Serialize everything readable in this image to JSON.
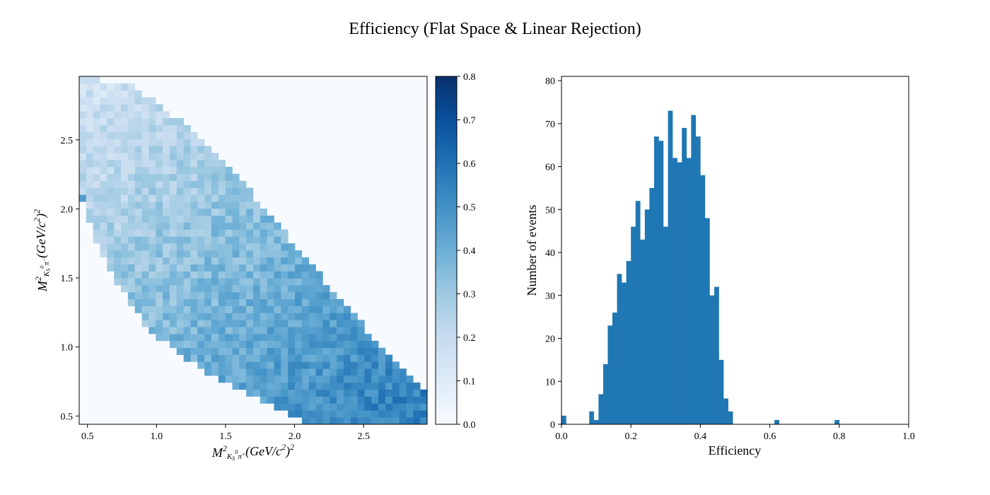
{
  "suptitle": "Efficiency (Flat Space & Linear Rejection)",
  "chart_data": [
    {
      "type": "heatmap",
      "title": "",
      "xlabel": "M²_{K_S^0 π^+} (GeV/c²)²",
      "ylabel": "M²_{K_S^0 π^-} (GeV/c²)²",
      "xlim": [
        0.44,
        2.96
      ],
      "ylim": [
        0.44,
        2.96
      ],
      "xticks": [
        "0.5",
        "1.0",
        "1.5",
        "2.0",
        "2.5"
      ],
      "xtick_values": [
        0.5,
        1.0,
        1.5,
        2.0,
        2.5
      ],
      "yticks": [
        "0.5",
        "1.0",
        "1.5",
        "2.0",
        "2.5"
      ],
      "ytick_values": [
        0.5,
        1.0,
        1.5,
        2.0,
        2.5
      ],
      "bins": 50,
      "colormap": "Blues",
      "colorbar": {
        "range": [
          0.0,
          0.8
        ],
        "ticks": [
          "0.0",
          "0.1",
          "0.2",
          "0.3",
          "0.4",
          "0.5",
          "0.6",
          "0.7",
          "0.8"
        ]
      },
      "kinematic_boundary": {
        "upper": [
          [
            0.44,
            2.96
          ],
          [
            0.82,
            2.9
          ],
          [
            1.3,
            2.55
          ],
          [
            1.75,
            2.05
          ],
          [
            2.2,
            1.5
          ],
          [
            2.65,
            0.98
          ],
          [
            2.96,
            0.68
          ]
        ],
        "lower": [
          [
            0.44,
            2.1
          ],
          [
            0.62,
            1.62
          ],
          [
            0.95,
            1.12
          ],
          [
            1.4,
            0.78
          ],
          [
            1.85,
            0.57
          ],
          [
            2.1,
            0.44
          ],
          [
            2.96,
            0.44
          ]
        ]
      },
      "efficiency_trend": {
        "at_top_left": 0.15,
        "gradient_along_x": 0.085,
        "gradient_along_y": -0.085,
        "typical_max": 0.55,
        "notable_cells": [
          {
            "x": 2.69,
            "y": 1.02,
            "value": 0.79
          },
          {
            "x": 0.48,
            "y": 2.08,
            "value": 0.46
          },
          {
            "x": 0.53,
            "y": 1.84,
            "value": 0.56
          },
          {
            "x": 0.74,
            "y": 1.38,
            "value": 0.5
          }
        ]
      }
    },
    {
      "type": "bar",
      "subtype": "histogram",
      "title": "",
      "xlabel": "Efficiency",
      "ylabel": "Number of events",
      "xlim": [
        0.0,
        1.0
      ],
      "ylim": [
        0,
        81
      ],
      "xticks": [
        "0.0",
        "0.2",
        "0.4",
        "0.6",
        "0.8",
        "1.0"
      ],
      "xtick_values": [
        0.0,
        0.2,
        0.4,
        0.6,
        0.8,
        1.0
      ],
      "yticks": [
        "0",
        "10",
        "20",
        "30",
        "40",
        "50",
        "60",
        "70",
        "80"
      ],
      "ytick_values": [
        0,
        10,
        20,
        30,
        40,
        50,
        60,
        70,
        80
      ],
      "bin_width": 0.01333,
      "bin_range": [
        0.0,
        0.8
      ],
      "counts": [
        2,
        0,
        0,
        0,
        0,
        0,
        3,
        1,
        7,
        14,
        23,
        26,
        35,
        33,
        38,
        46,
        52,
        43,
        50,
        55,
        67,
        66,
        46,
        73,
        62,
        61,
        69,
        62,
        72,
        67,
        58,
        48,
        30,
        32,
        15,
        6,
        3,
        0,
        0,
        0,
        0,
        0,
        0,
        0,
        0,
        0,
        1,
        0,
        0,
        0,
        0,
        0,
        0,
        0,
        0,
        0,
        0,
        0,
        0,
        1
      ],
      "color": "#1f77b4"
    }
  ]
}
